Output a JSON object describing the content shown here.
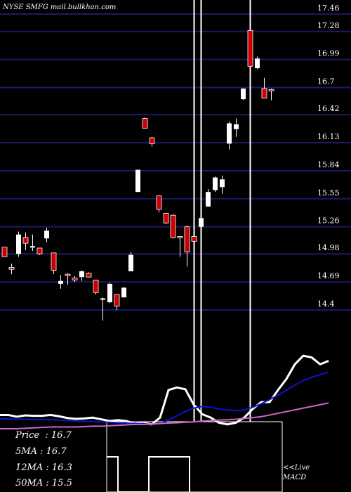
{
  "header": {
    "watermark": "NYSE SMFG mail.bullkhan.com"
  },
  "info": {
    "price_label": "Price",
    "price": "16.7",
    "ma5_label": "5MA",
    "ma5": "16.7",
    "ma12_label": "12MA",
    "ma12": "16.3",
    "ma50_label": "50MA",
    "ma50": "15.5"
  },
  "macd_note": {
    "line1": "<<Live",
    "line2": "MACD"
  },
  "colors": {
    "background": "#000000",
    "grid": "#1a1a66",
    "up_candle": "#ffffff",
    "down_candle": "#cc0000",
    "signal_line": "#ffffff",
    "macd_line": "#1111cc",
    "slow_line": "#cc66cc"
  },
  "chart_data": {
    "type": "candlestick",
    "y_ticks": [
      17.46,
      17.28,
      16.99,
      16.7,
      16.42,
      16.13,
      15.84,
      15.55,
      15.26,
      14.98,
      14.69,
      14.4
    ],
    "y_tick_labels": [
      "17.46",
      "17.28",
      "16.99",
      "16.7",
      "16.42",
      "16.13",
      "15.84",
      "15.55",
      "15.26",
      "14.98",
      "14.69",
      "14.4"
    ],
    "ylim": [
      14.4,
      17.46
    ],
    "candles": [
      {
        "o": 15.05,
        "h": 15.05,
        "l": 14.95,
        "c": 14.95
      },
      {
        "o": 14.84,
        "h": 14.88,
        "l": 14.77,
        "c": 14.82
      },
      {
        "o": 14.98,
        "h": 15.21,
        "l": 14.95,
        "c": 15.18
      },
      {
        "o": 15.15,
        "h": 15.2,
        "l": 15.02,
        "c": 15.09
      },
      {
        "o": 15.06,
        "h": 15.18,
        "l": 15.01,
        "c": 15.06
      },
      {
        "o": 15.04,
        "h": 15.04,
        "l": 14.97,
        "c": 14.98
      },
      {
        "o": 15.14,
        "h": 15.25,
        "l": 15.1,
        "c": 15.22
      },
      {
        "o": 14.99,
        "h": 14.99,
        "l": 14.77,
        "c": 14.81
      },
      {
        "o": 14.67,
        "h": 14.76,
        "l": 14.62,
        "c": 14.7
      },
      {
        "o": 14.77,
        "h": 14.78,
        "l": 14.66,
        "c": 14.76
      },
      {
        "o": 14.73,
        "h": 14.75,
        "l": 14.69,
        "c": 14.71
      },
      {
        "o": 14.74,
        "h": 14.81,
        "l": 14.7,
        "c": 14.8
      },
      {
        "o": 14.78,
        "h": 14.79,
        "l": 14.74,
        "c": 14.74
      },
      {
        "o": 14.71,
        "h": 14.71,
        "l": 14.56,
        "c": 14.58
      },
      {
        "o": 14.52,
        "h": 14.53,
        "l": 14.29,
        "c": 14.52
      },
      {
        "o": 14.48,
        "h": 14.68,
        "l": 14.47,
        "c": 14.67
      },
      {
        "o": 14.56,
        "h": 14.56,
        "l": 14.4,
        "c": 14.44
      },
      {
        "o": 14.53,
        "h": 14.64,
        "l": 14.53,
        "c": 14.63
      },
      {
        "o": 14.8,
        "h": 15.0,
        "l": 14.8,
        "c": 14.97
      },
      {
        "o": 15.62,
        "h": 15.85,
        "l": 15.62,
        "c": 15.85
      },
      {
        "o": 16.38,
        "h": 16.39,
        "l": 16.28,
        "c": 16.28
      },
      {
        "o": 16.18,
        "h": 16.19,
        "l": 16.09,
        "c": 16.12
      },
      {
        "o": 15.58,
        "h": 15.58,
        "l": 15.41,
        "c": 15.44
      },
      {
        "o": 15.4,
        "h": 15.4,
        "l": 15.29,
        "c": 15.3
      },
      {
        "o": 15.38,
        "h": 15.39,
        "l": 15.14,
        "c": 15.15
      },
      {
        "o": 15.16,
        "h": 15.16,
        "l": 14.95,
        "c": 15.15
      },
      {
        "o": 15.26,
        "h": 15.27,
        "l": 14.85,
        "c": 15.0
      },
      {
        "o": 15.16,
        "h": 15.16,
        "l": 15.09,
        "c": 15.11
      },
      {
        "o": 15.26,
        "h": 15.35,
        "l": 15.25,
        "c": 15.35
      },
      {
        "o": 15.47,
        "h": 15.65,
        "l": 15.47,
        "c": 15.62
      },
      {
        "o": 15.64,
        "h": 15.78,
        "l": 15.62,
        "c": 15.77
      },
      {
        "o": 15.67,
        "h": 15.79,
        "l": 15.6,
        "c": 15.75
      },
      {
        "o": 16.12,
        "h": 16.35,
        "l": 16.06,
        "c": 16.33
      },
      {
        "o": 16.27,
        "h": 16.38,
        "l": 16.19,
        "c": 16.32
      },
      {
        "o": 16.58,
        "h": 16.69,
        "l": 16.57,
        "c": 16.69
      },
      {
        "o": 17.29,
        "h": 17.34,
        "l": 16.91,
        "c": 16.92
      },
      {
        "o": 16.9,
        "h": 17.02,
        "l": 16.89,
        "c": 17.0
      },
      {
        "o": 16.69,
        "h": 16.8,
        "l": 16.6,
        "c": 16.59
      },
      {
        "o": 16.68,
        "h": 16.69,
        "l": 16.57,
        "c": 16.67
      }
    ],
    "macd_lines": [
      {
        "name": "",
        "color_key": "signal_line",
        "values": [
          0.1,
          0.1,
          -0.1,
          0.05,
          0.0,
          0.0,
          0.1,
          -0.05,
          -0.25,
          -0.35,
          -0.3,
          -0.2,
          -0.4,
          -0.6,
          -0.5,
          -0.6,
          -0.9,
          -0.8,
          -1.0,
          -0.2,
          3.0,
          3.3,
          3.1,
          1.3,
          0.2,
          -0.2,
          -0.8,
          -1.0,
          -0.8,
          -0.2,
          0.8,
          1.6,
          1.6,
          3.0,
          4.3,
          6.0,
          7.0,
          6.8,
          6.0,
          6.4
        ]
      },
      {
        "name": "",
        "color_key": "macd_line",
        "values": [
          -0.35,
          -0.35,
          -0.4,
          -0.4,
          -0.45,
          -0.45,
          -0.45,
          -0.5,
          -0.55,
          -0.6,
          -0.65,
          -0.65,
          -0.7,
          -0.75,
          -0.8,
          -0.85,
          -0.9,
          -0.9,
          -1.0,
          -0.9,
          -0.5,
          0.0,
          0.5,
          0.9,
          1.1,
          1.0,
          0.8,
          0.7,
          0.6,
          0.7,
          1.0,
          1.4,
          1.9,
          2.4,
          3.0,
          3.6,
          4.1,
          4.5,
          4.8,
          5.1
        ]
      },
      {
        "name": "",
        "color_key": "slow_line",
        "values": [
          -1.5,
          -1.5,
          -1.5,
          -1.45,
          -1.4,
          -1.35,
          -1.3,
          -1.3,
          -1.3,
          -1.3,
          -1.25,
          -1.2,
          -1.2,
          -1.15,
          -1.1,
          -1.05,
          -1.0,
          -1.0,
          -0.95,
          -0.9,
          -0.85,
          -0.8,
          -0.75,
          -0.7,
          -0.6,
          -0.55,
          -0.5,
          -0.45,
          -0.4,
          -0.3,
          -0.2,
          -0.1,
          0.1,
          0.3,
          0.5,
          0.7,
          0.9,
          1.1,
          1.3,
          1.5
        ]
      }
    ],
    "histogram": [
      0.0,
      0.0,
      0.0,
      0.0,
      0.0,
      0.0,
      0.0,
      0.0,
      0.0,
      0.0,
      0.0,
      0.0,
      0.0,
      0.0,
      0.0,
      0.0,
      0.0,
      0.0,
      0.0,
      0.0,
      0.0,
      0.0,
      0.0,
      0.0,
      0.0,
      0.0,
      0.0,
      0.0,
      0.0,
      0.0,
      0.0,
      0.0,
      0.0,
      0.0,
      0.0,
      0.0,
      0.0,
      0.0,
      0.0,
      0.0
    ],
    "highlight_candles": [
      27,
      28,
      35
    ]
  }
}
